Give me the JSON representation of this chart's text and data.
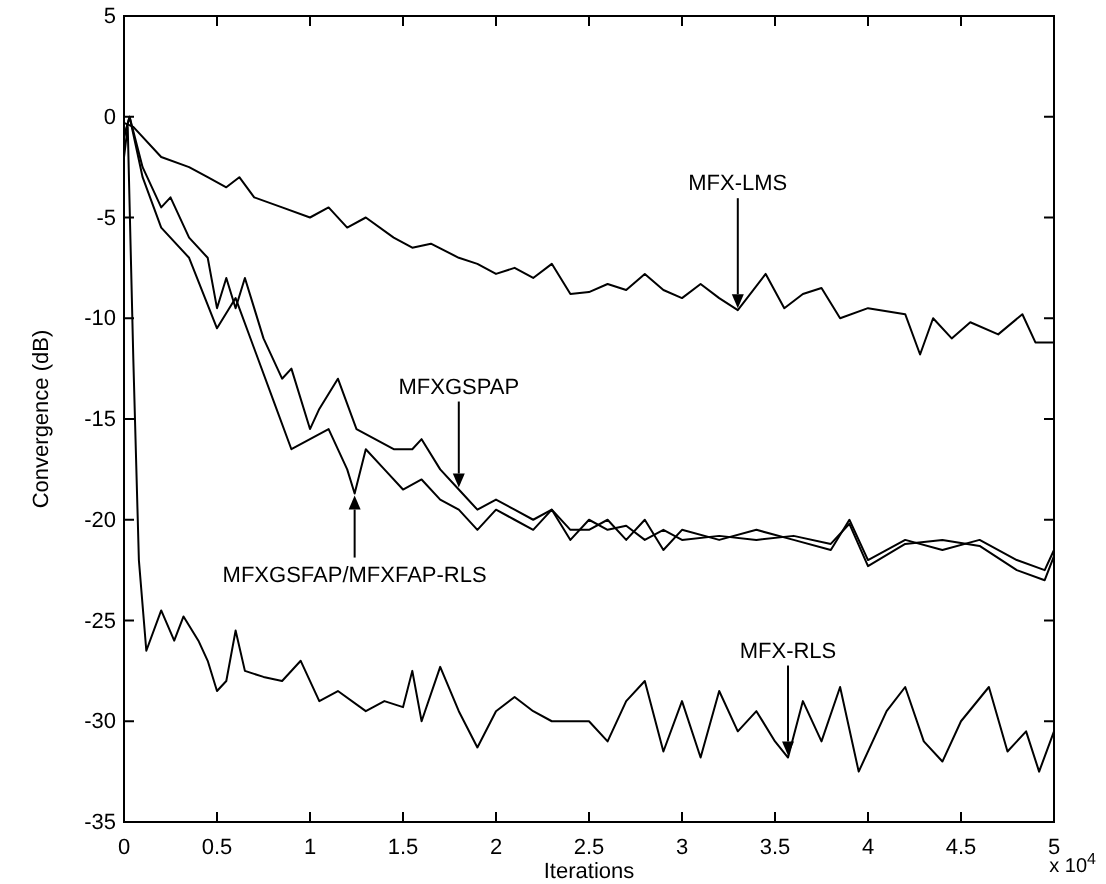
{
  "chart_data": {
    "type": "line",
    "xlabel": "Iterations",
    "ylabel": "Convergence (dB)",
    "xlim": [
      0,
      5
    ],
    "ylim": [
      -35,
      5
    ],
    "xticks": [
      0,
      0.5,
      1,
      1.5,
      2,
      2.5,
      3,
      3.5,
      4,
      4.5,
      5
    ],
    "yticks": [
      -35,
      -30,
      -25,
      -20,
      -15,
      -10,
      -5,
      0,
      5
    ],
    "grid": false,
    "line_style": "solid",
    "marker": "none",
    "annotations": [
      {
        "text": "MFX-LMS",
        "x": 3.3,
        "y": -9.6
      },
      {
        "text": "MFXGSPAP",
        "x": 1.8,
        "y": -18.5
      },
      {
        "text": "MFXGSFAP/MFXFAP-RLS",
        "x": 1.24,
        "y": -18.7
      },
      {
        "text": "MFX-RLS",
        "x": 3.57,
        "y": -31.8
      },
      "x 10$^{4}$"
    ],
    "series": [
      {
        "color": "#000000",
        "x": [
          0,
          0.05,
          0.2,
          0.35,
          0.45,
          0.55,
          0.62,
          0.7,
          0.85,
          1.0,
          1.1,
          1.2,
          1.3,
          1.45,
          1.55,
          1.65,
          1.8,
          1.9,
          2.0,
          2.1,
          2.2,
          2.3,
          2.4,
          2.5,
          2.6,
          2.7,
          2.8,
          2.9,
          3.0,
          3.1,
          3.2,
          3.3,
          3.45,
          3.55,
          3.65,
          3.75,
          3.85,
          4.0,
          4.2,
          4.28,
          4.35,
          4.45,
          4.55,
          4.7,
          4.83,
          4.9,
          5.0
        ],
        "values": [
          -0.3,
          -0.5,
          -2.0,
          -2.5,
          -3.0,
          -3.5,
          -3.0,
          -4.0,
          -4.5,
          -5.0,
          -4.5,
          -5.5,
          -5.0,
          -6.0,
          -6.5,
          -6.3,
          -7.0,
          -7.3,
          -7.8,
          -7.5,
          -8.0,
          -7.3,
          -8.8,
          -8.7,
          -8.3,
          -8.6,
          -7.8,
          -8.6,
          -9.0,
          -8.3,
          -9.0,
          -9.6,
          -7.8,
          -9.5,
          -8.8,
          -8.5,
          -10.0,
          -9.5,
          -9.8,
          -11.8,
          -10.0,
          -11.0,
          -10.2,
          -10.8,
          -9.8,
          -11.2,
          -11.2
        ]
      },
      {
        "color": "#000000",
        "x": [
          0,
          0.03,
          0.1,
          0.2,
          0.25,
          0.35,
          0.45,
          0.5,
          0.55,
          0.6,
          0.65,
          0.75,
          0.85,
          0.9,
          1.0,
          1.05,
          1.15,
          1.25,
          1.35,
          1.45,
          1.55,
          1.6,
          1.7,
          1.8,
          1.9,
          2.0,
          2.1,
          2.2,
          2.3,
          2.4,
          2.5,
          2.6,
          2.7,
          2.8,
          2.9,
          3.0,
          3.2,
          3.4,
          3.6,
          3.8,
          3.9,
          4.0,
          4.2,
          4.4,
          4.6,
          4.8,
          4.95,
          5.0
        ],
        "values": [
          -1.0,
          0,
          -2.5,
          -4.5,
          -4.0,
          -6.0,
          -7.0,
          -9.5,
          -8.0,
          -9.5,
          -8.0,
          -11.0,
          -13.0,
          -12.5,
          -15.5,
          -14.5,
          -13.0,
          -15.5,
          -16.0,
          -16.5,
          -16.5,
          -16.0,
          -17.5,
          -18.5,
          -19.5,
          -19.0,
          -19.5,
          -20.0,
          -19.5,
          -20.5,
          -20.5,
          -20.0,
          -21.0,
          -20.0,
          -21.5,
          -20.5,
          -21.0,
          -20.5,
          -21.0,
          -21.5,
          -20.0,
          -22.0,
          -21.0,
          -21.5,
          -21.0,
          -22.0,
          -22.5,
          -21.5
        ]
      },
      {
        "color": "#000000",
        "x": [
          0,
          0.03,
          0.1,
          0.2,
          0.35,
          0.5,
          0.6,
          0.7,
          0.8,
          0.9,
          1.0,
          1.1,
          1.2,
          1.24,
          1.3,
          1.4,
          1.5,
          1.6,
          1.7,
          1.8,
          1.9,
          2.0,
          2.1,
          2.2,
          2.3,
          2.4,
          2.5,
          2.6,
          2.7,
          2.8,
          2.9,
          3.0,
          3.2,
          3.4,
          3.6,
          3.8,
          3.9,
          4.0,
          4.2,
          4.4,
          4.6,
          4.8,
          4.95,
          5.0
        ],
        "values": [
          -1.0,
          0,
          -3.0,
          -5.5,
          -7.0,
          -10.5,
          -9.0,
          -11.5,
          -14.0,
          -16.5,
          -16.0,
          -15.5,
          -17.5,
          -18.7,
          -16.5,
          -17.5,
          -18.5,
          -18.0,
          -19.0,
          -19.5,
          -20.5,
          -19.5,
          -20.0,
          -20.5,
          -19.5,
          -21.0,
          -20.0,
          -20.5,
          -20.3,
          -21.0,
          -20.5,
          -21.0,
          -20.8,
          -21.0,
          -20.8,
          -21.2,
          -20.2,
          -22.3,
          -21.2,
          -21.0,
          -21.3,
          -22.5,
          -23.0,
          -21.8
        ]
      },
      {
        "color": "#000000",
        "x": [
          0,
          0.02,
          0.05,
          0.08,
          0.12,
          0.2,
          0.27,
          0.32,
          0.4,
          0.45,
          0.5,
          0.55,
          0.6,
          0.65,
          0.75,
          0.85,
          0.95,
          1.05,
          1.15,
          1.3,
          1.4,
          1.5,
          1.55,
          1.6,
          1.7,
          1.8,
          1.9,
          2.0,
          2.1,
          2.2,
          2.3,
          2.5,
          2.6,
          2.7,
          2.8,
          2.9,
          3.0,
          3.1,
          3.2,
          3.3,
          3.4,
          3.5,
          3.57,
          3.65,
          3.75,
          3.85,
          3.95,
          4.1,
          4.2,
          4.3,
          4.4,
          4.5,
          4.65,
          4.75,
          4.85,
          4.92,
          5.0
        ],
        "values": [
          -2.0,
          -0.5,
          -12.0,
          -22.0,
          -26.5,
          -24.5,
          -26.0,
          -24.8,
          -26.0,
          -27.0,
          -28.5,
          -28.0,
          -25.5,
          -27.5,
          -27.8,
          -28.0,
          -27.0,
          -29.0,
          -28.5,
          -29.5,
          -29.0,
          -29.3,
          -27.5,
          -30.0,
          -27.3,
          -29.5,
          -31.3,
          -29.5,
          -28.8,
          -29.5,
          -30.0,
          -30.0,
          -31.0,
          -29.0,
          -28.0,
          -31.5,
          -29.0,
          -31.8,
          -28.5,
          -30.5,
          -29.5,
          -31.0,
          -31.8,
          -29.0,
          -31.0,
          -28.3,
          -32.5,
          -29.5,
          -28.3,
          -31.0,
          -32.0,
          -30.0,
          -28.3,
          -31.5,
          -30.5,
          -32.5,
          -30.5
        ]
      }
    ]
  }
}
